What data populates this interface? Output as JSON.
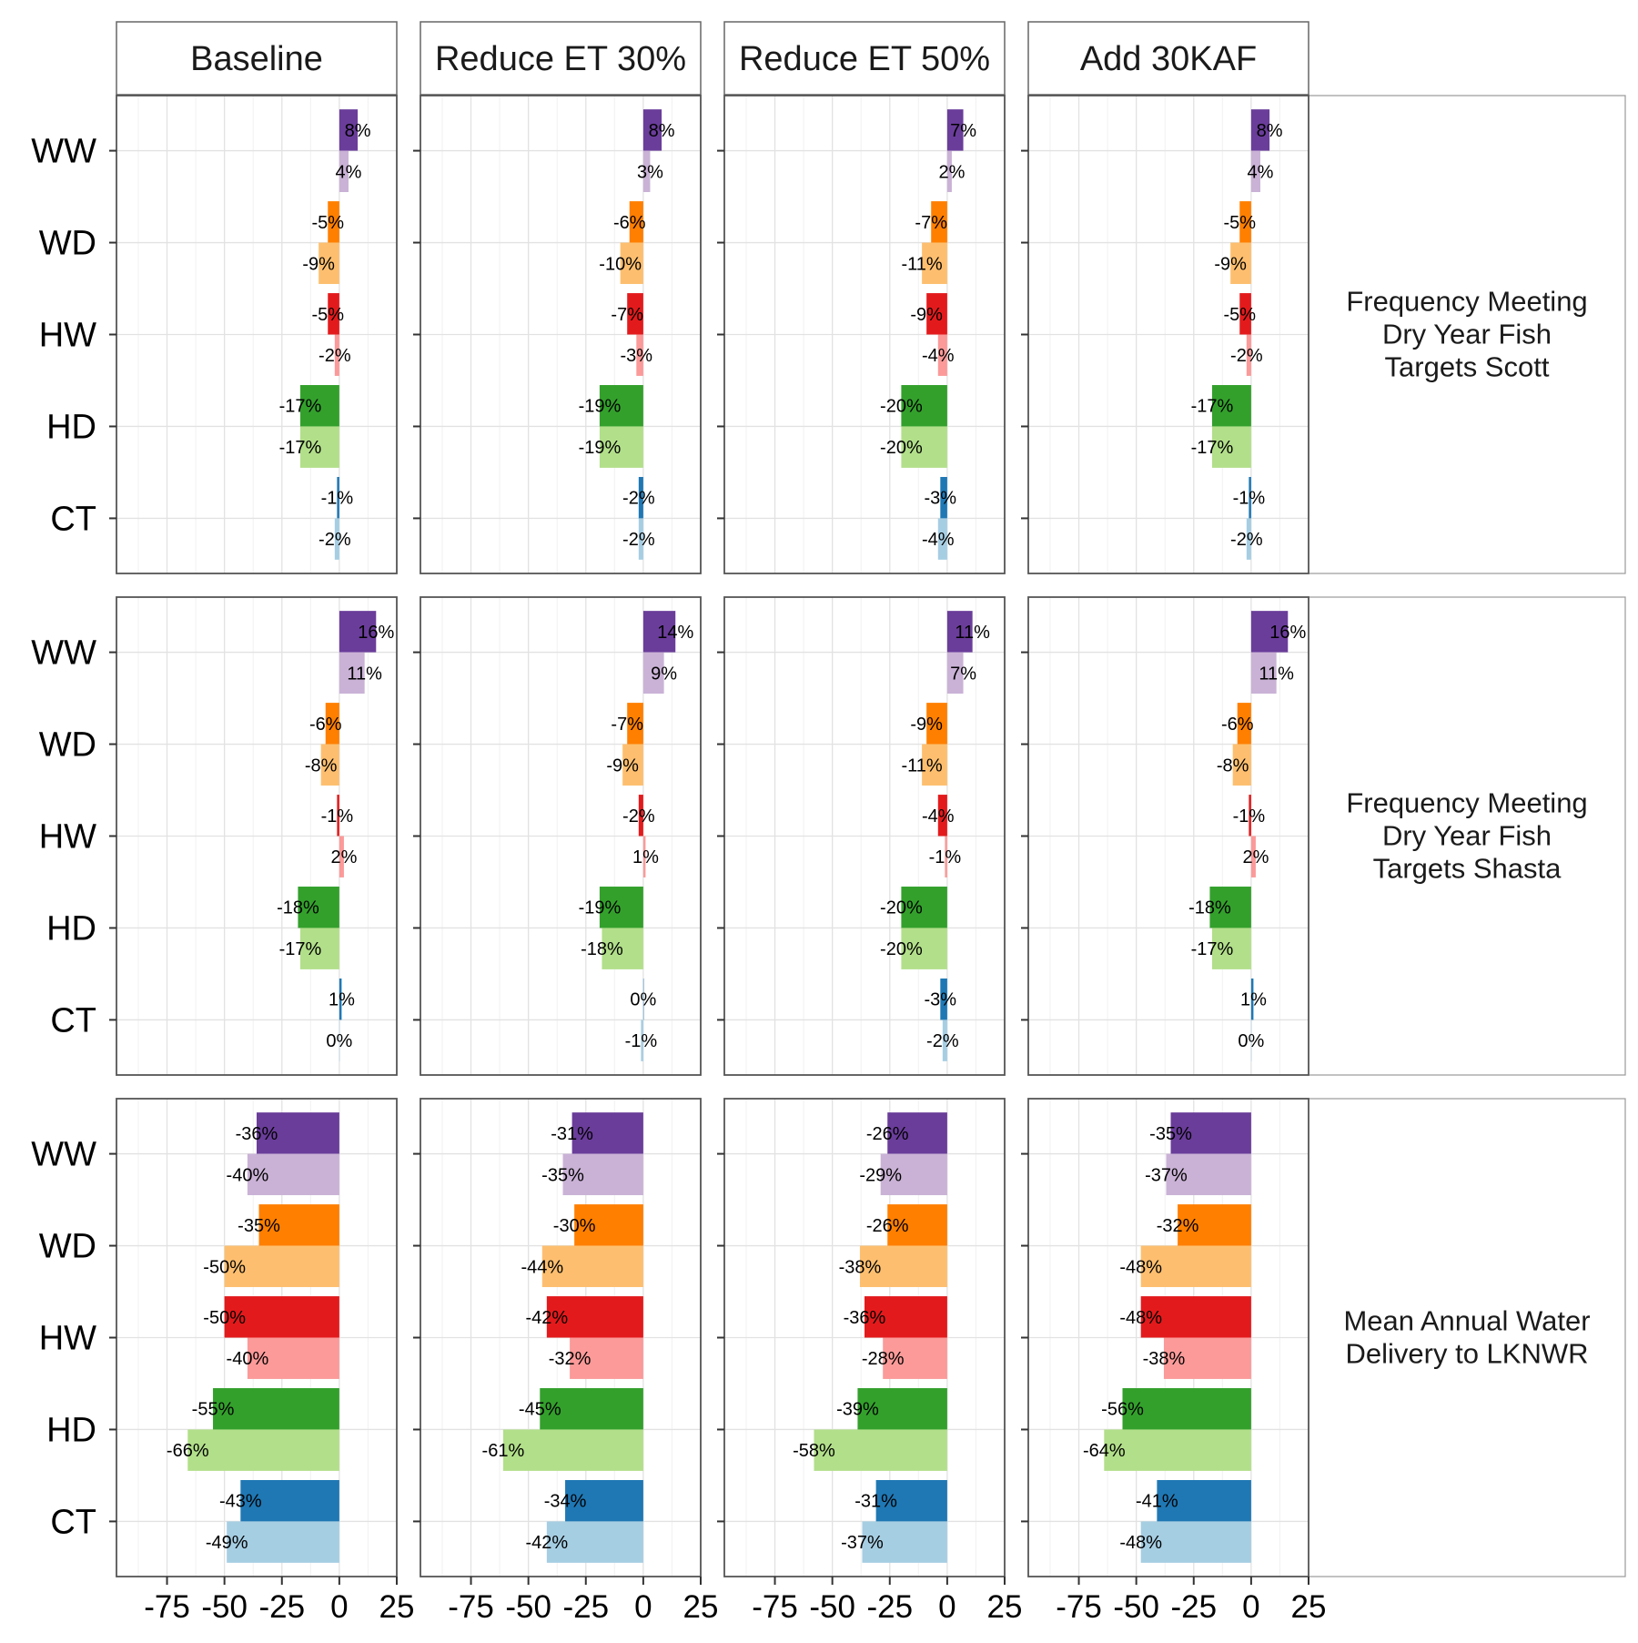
{
  "chart_data": {
    "type": "bar",
    "orientation": "horizontal",
    "facet_columns": [
      "Baseline",
      "Reduce ET 30%",
      "Reduce ET 50%",
      "Add 30KAF"
    ],
    "facet_rows": [
      {
        "label": "Frequency Meeting\nDry Year Fish\nTargets Scott"
      },
      {
        "label": "Frequency Meeting\nDry Year Fish\nTargets Shasta"
      },
      {
        "label": "Mean Annual Water\nDelivery to LKNWR"
      }
    ],
    "categories": [
      "WW",
      "WD",
      "HW",
      "HD",
      "CT"
    ],
    "xlim": [
      -97,
      25
    ],
    "x_ticks": [
      -75,
      -50,
      -25,
      0,
      25
    ],
    "grid": true,
    "legend": "none",
    "series_colors": {
      "WW": [
        "#6a3d9a",
        "#cab2d6"
      ],
      "WD": [
        "#ff7f00",
        "#fdbf6f"
      ],
      "HW": [
        "#e31a1c",
        "#fb9a99"
      ],
      "HD": [
        "#33a02c",
        "#b2df8a"
      ],
      "CT": [
        "#1f78b4",
        "#a6cee3"
      ]
    },
    "panels": [
      [
        {
          "WW": [
            8,
            4
          ],
          "WD": [
            -5,
            -9
          ],
          "HW": [
            -5,
            -2
          ],
          "HD": [
            -17,
            -17
          ],
          "CT": [
            -1,
            -2
          ]
        },
        {
          "WW": [
            8,
            3
          ],
          "WD": [
            -6,
            -10
          ],
          "HW": [
            -7,
            -3
          ],
          "HD": [
            -19,
            -19
          ],
          "CT": [
            -2,
            -2
          ]
        },
        {
          "WW": [
            7,
            2
          ],
          "WD": [
            -7,
            -11
          ],
          "HW": [
            -9,
            -4
          ],
          "HD": [
            -20,
            -20
          ],
          "CT": [
            -3,
            -4
          ]
        },
        {
          "WW": [
            8,
            4
          ],
          "WD": [
            -5,
            -9
          ],
          "HW": [
            -5,
            -2
          ],
          "HD": [
            -17,
            -17
          ],
          "CT": [
            -1,
            -2
          ]
        }
      ],
      [
        {
          "WW": [
            16,
            11
          ],
          "WD": [
            -6,
            -8
          ],
          "HW": [
            -1,
            2
          ],
          "HD": [
            -18,
            -17
          ],
          "CT": [
            1,
            0
          ]
        },
        {
          "WW": [
            14,
            9
          ],
          "WD": [
            -7,
            -9
          ],
          "HW": [
            -2,
            1
          ],
          "HD": [
            -19,
            -18
          ],
          "CT": [
            0,
            -1
          ]
        },
        {
          "WW": [
            11,
            7
          ],
          "WD": [
            -9,
            -11
          ],
          "HW": [
            -4,
            -1
          ],
          "HD": [
            -20,
            -20
          ],
          "CT": [
            -3,
            -2
          ]
        },
        {
          "WW": [
            16,
            11
          ],
          "WD": [
            -6,
            -8
          ],
          "HW": [
            -1,
            2
          ],
          "HD": [
            -18,
            -17
          ],
          "CT": [
            1,
            0
          ]
        }
      ],
      [
        {
          "WW": [
            -36,
            -40
          ],
          "WD": [
            -35,
            -50
          ],
          "HW": [
            -50,
            -40
          ],
          "HD": [
            -55,
            -66
          ],
          "CT": [
            -43,
            -49
          ]
        },
        {
          "WW": [
            -31,
            -35
          ],
          "WD": [
            -30,
            -44
          ],
          "HW": [
            -42,
            -32
          ],
          "HD": [
            -45,
            -61
          ],
          "CT": [
            -34,
            -42
          ]
        },
        {
          "WW": [
            -26,
            -29
          ],
          "WD": [
            -26,
            -38
          ],
          "HW": [
            -36,
            -28
          ],
          "HD": [
            -39,
            -58
          ],
          "CT": [
            -31,
            -37
          ]
        },
        {
          "WW": [
            -35,
            -37
          ],
          "WD": [
            -32,
            -48
          ],
          "HW": [
            -48,
            -38
          ],
          "HD": [
            -56,
            -64
          ],
          "CT": [
            -41,
            -48
          ]
        }
      ]
    ]
  }
}
